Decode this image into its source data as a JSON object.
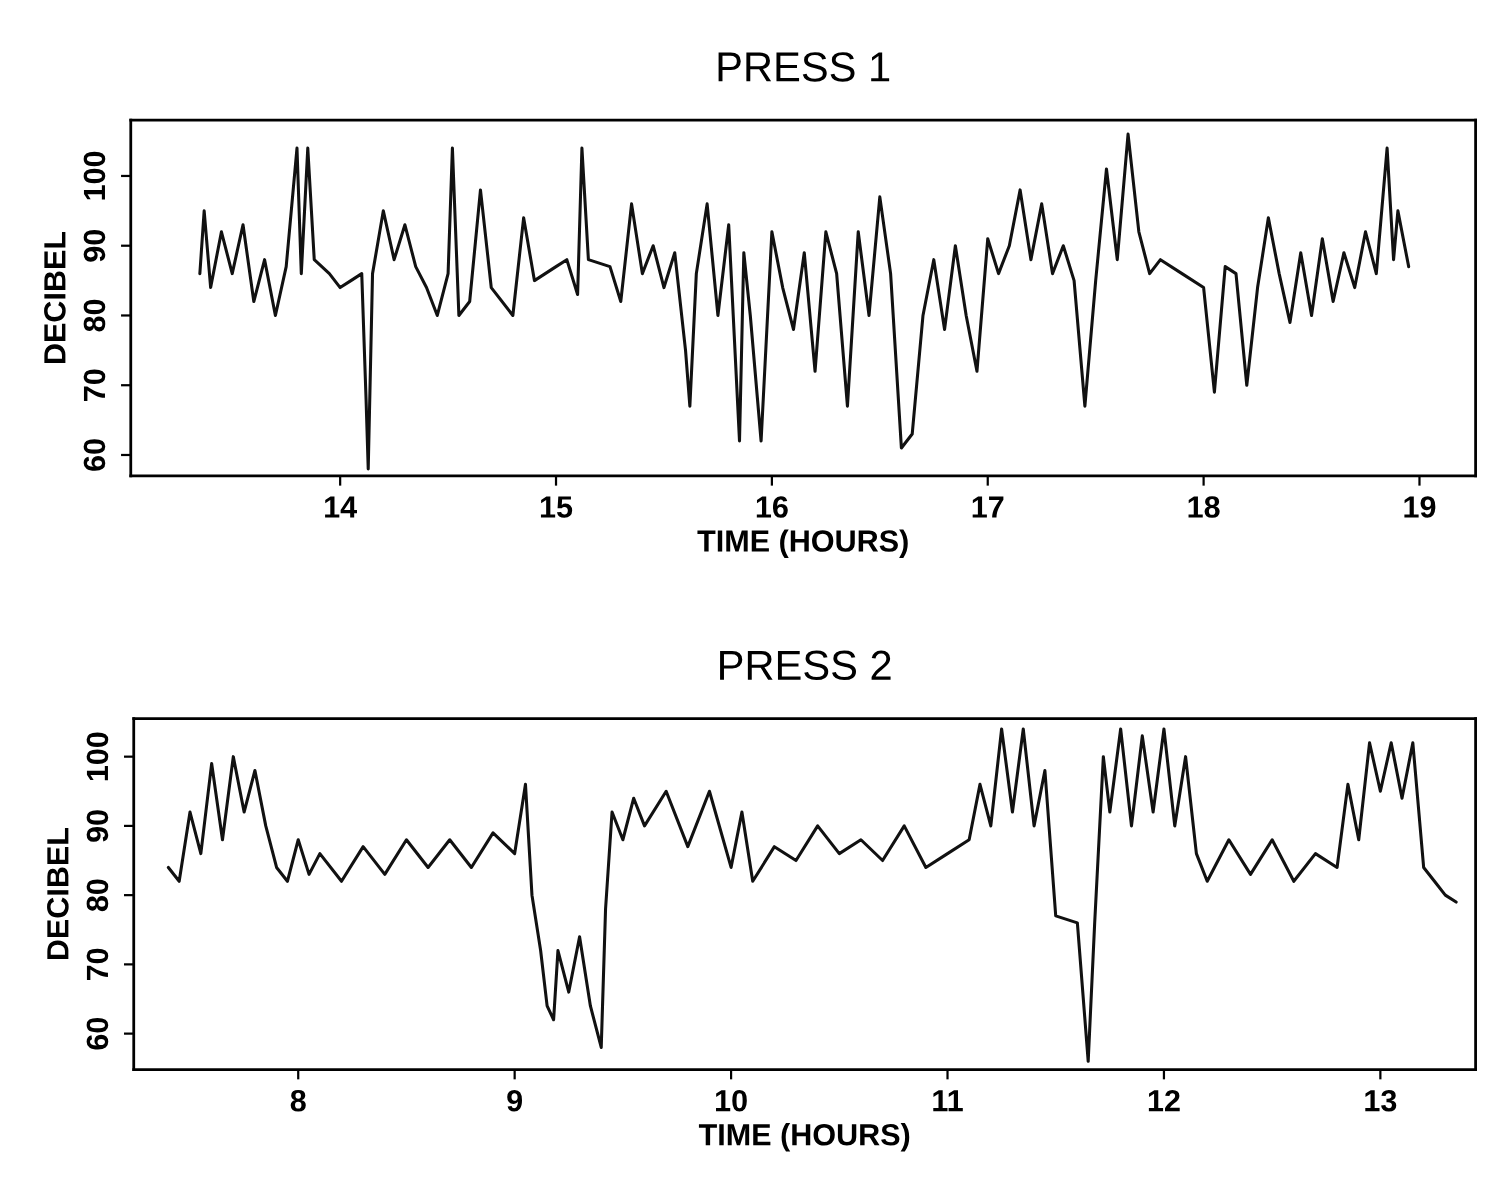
{
  "chart_data": [
    {
      "type": "line",
      "title": "PRESS 1",
      "xlabel": "TIME (HOURS)",
      "ylabel": "DECIBEL",
      "xlim": [
        13.03,
        19.26
      ],
      "ylim": [
        57,
        108
      ],
      "xticks": [
        14,
        15,
        16,
        17,
        18,
        19
      ],
      "yticks": [
        60,
        70,
        80,
        90,
        100
      ],
      "grid": false,
      "legend": false,
      "marker": "none",
      "line_style": "solid",
      "series": [
        {
          "color": "#111111",
          "x": [
            13.35,
            13.37,
            13.4,
            13.45,
            13.5,
            13.55,
            13.6,
            13.65,
            13.7,
            13.75,
            13.8,
            13.82,
            13.85,
            13.88,
            13.95,
            14.0,
            14.05,
            14.1,
            14.12,
            14.13,
            14.15,
            14.2,
            14.25,
            14.3,
            14.35,
            14.4,
            14.45,
            14.5,
            14.52,
            14.55,
            14.6,
            14.65,
            14.7,
            14.8,
            14.85,
            14.9,
            15.0,
            15.05,
            15.1,
            15.12,
            15.15,
            15.25,
            15.3,
            15.35,
            15.4,
            15.45,
            15.5,
            15.55,
            15.6,
            15.62,
            15.65,
            15.7,
            15.75,
            15.8,
            15.85,
            15.87,
            15.9,
            15.95,
            16.0,
            16.05,
            16.1,
            16.15,
            16.2,
            16.25,
            16.3,
            16.35,
            16.4,
            16.45,
            16.5,
            16.55,
            16.6,
            16.65,
            16.7,
            16.75,
            16.8,
            16.85,
            16.9,
            16.95,
            17.0,
            17.05,
            17.1,
            17.15,
            17.2,
            17.25,
            17.3,
            17.35,
            17.4,
            17.45,
            17.5,
            17.55,
            17.6,
            17.65,
            17.7,
            17.75,
            17.8,
            17.9,
            18.0,
            18.05,
            18.1,
            18.15,
            18.2,
            18.25,
            18.3,
            18.35,
            18.4,
            18.45,
            18.5,
            18.55,
            18.6,
            18.65,
            18.7,
            18.75,
            18.8,
            18.85,
            18.88,
            18.9,
            18.95
          ],
          "values": [
            86,
            95,
            84,
            92,
            86,
            93,
            82,
            88,
            80,
            87,
            104,
            86,
            104,
            88,
            86,
            84,
            85,
            86,
            68,
            58,
            86,
            95,
            88,
            93,
            87,
            84,
            80,
            86,
            104,
            80,
            82,
            98,
            84,
            80,
            94,
            85,
            87,
            88,
            83,
            104,
            88,
            87,
            82,
            96,
            86,
            90,
            84,
            89,
            75,
            67,
            86,
            96,
            80,
            93,
            62,
            89,
            80,
            62,
            92,
            84,
            78,
            89,
            72,
            92,
            86,
            67,
            92,
            80,
            97,
            86,
            61,
            63,
            80,
            88,
            78,
            90,
            80,
            72,
            91,
            86,
            90,
            98,
            88,
            96,
            86,
            90,
            85,
            67,
            85,
            101,
            88,
            106,
            92,
            86,
            88,
            86,
            84,
            69,
            87,
            86,
            70,
            84,
            94,
            86,
            79,
            89,
            80,
            91,
            82,
            89,
            84,
            92,
            86,
            104,
            88,
            95,
            87
          ]
        }
      ]
    },
    {
      "type": "line",
      "title": "PRESS 2",
      "xlabel": "TIME (HOURS)",
      "ylabel": "DECIBEL",
      "xlim": [
        7.24,
        13.44
      ],
      "ylim": [
        54.8,
        105.5
      ],
      "xticks": [
        8,
        9,
        10,
        11,
        12,
        13
      ],
      "yticks": [
        60,
        70,
        80,
        90,
        100
      ],
      "grid": false,
      "legend": false,
      "marker": "none",
      "line_style": "solid",
      "series": [
        {
          "color": "#111111",
          "x": [
            7.4,
            7.45,
            7.5,
            7.55,
            7.6,
            7.65,
            7.7,
            7.75,
            7.8,
            7.85,
            7.9,
            7.95,
            8.0,
            8.05,
            8.1,
            8.2,
            8.3,
            8.4,
            8.5,
            8.6,
            8.7,
            8.8,
            8.9,
            9.0,
            9.05,
            9.08,
            9.12,
            9.15,
            9.18,
            9.2,
            9.25,
            9.3,
            9.35,
            9.4,
            9.42,
            9.45,
            9.5,
            9.55,
            9.6,
            9.7,
            9.8,
            9.9,
            10.0,
            10.05,
            10.1,
            10.2,
            10.3,
            10.4,
            10.5,
            10.6,
            10.7,
            10.8,
            10.9,
            11.0,
            11.1,
            11.15,
            11.2,
            11.25,
            11.3,
            11.35,
            11.4,
            11.45,
            11.5,
            11.6,
            11.65,
            11.68,
            11.72,
            11.75,
            11.8,
            11.85,
            11.9,
            11.95,
            12.0,
            12.05,
            12.1,
            12.15,
            12.2,
            12.3,
            12.4,
            12.5,
            12.6,
            12.7,
            12.8,
            12.85,
            12.9,
            12.95,
            13.0,
            13.05,
            13.1,
            13.15,
            13.2,
            13.25,
            13.3,
            13.35
          ],
          "values": [
            84,
            82,
            92,
            86,
            99,
            88,
            100,
            92,
            98,
            90,
            84,
            82,
            88,
            83,
            86,
            82,
            87,
            83,
            88,
            84,
            88,
            84,
            89,
            86,
            96,
            80,
            72,
            64,
            62,
            72,
            66,
            74,
            64,
            58,
            78,
            92,
            88,
            94,
            90,
            95,
            87,
            95,
            84,
            92,
            82,
            87,
            85,
            90,
            86,
            88,
            85,
            90,
            84,
            86,
            88,
            96,
            90,
            104,
            92,
            104,
            90,
            98,
            77,
            76,
            56,
            76,
            100,
            92,
            104,
            90,
            103,
            92,
            104,
            90,
            100,
            86,
            82,
            88,
            83,
            88,
            82,
            86,
            84,
            96,
            88,
            102,
            95,
            102,
            94,
            102,
            84,
            82,
            80,
            79
          ]
        }
      ]
    }
  ]
}
